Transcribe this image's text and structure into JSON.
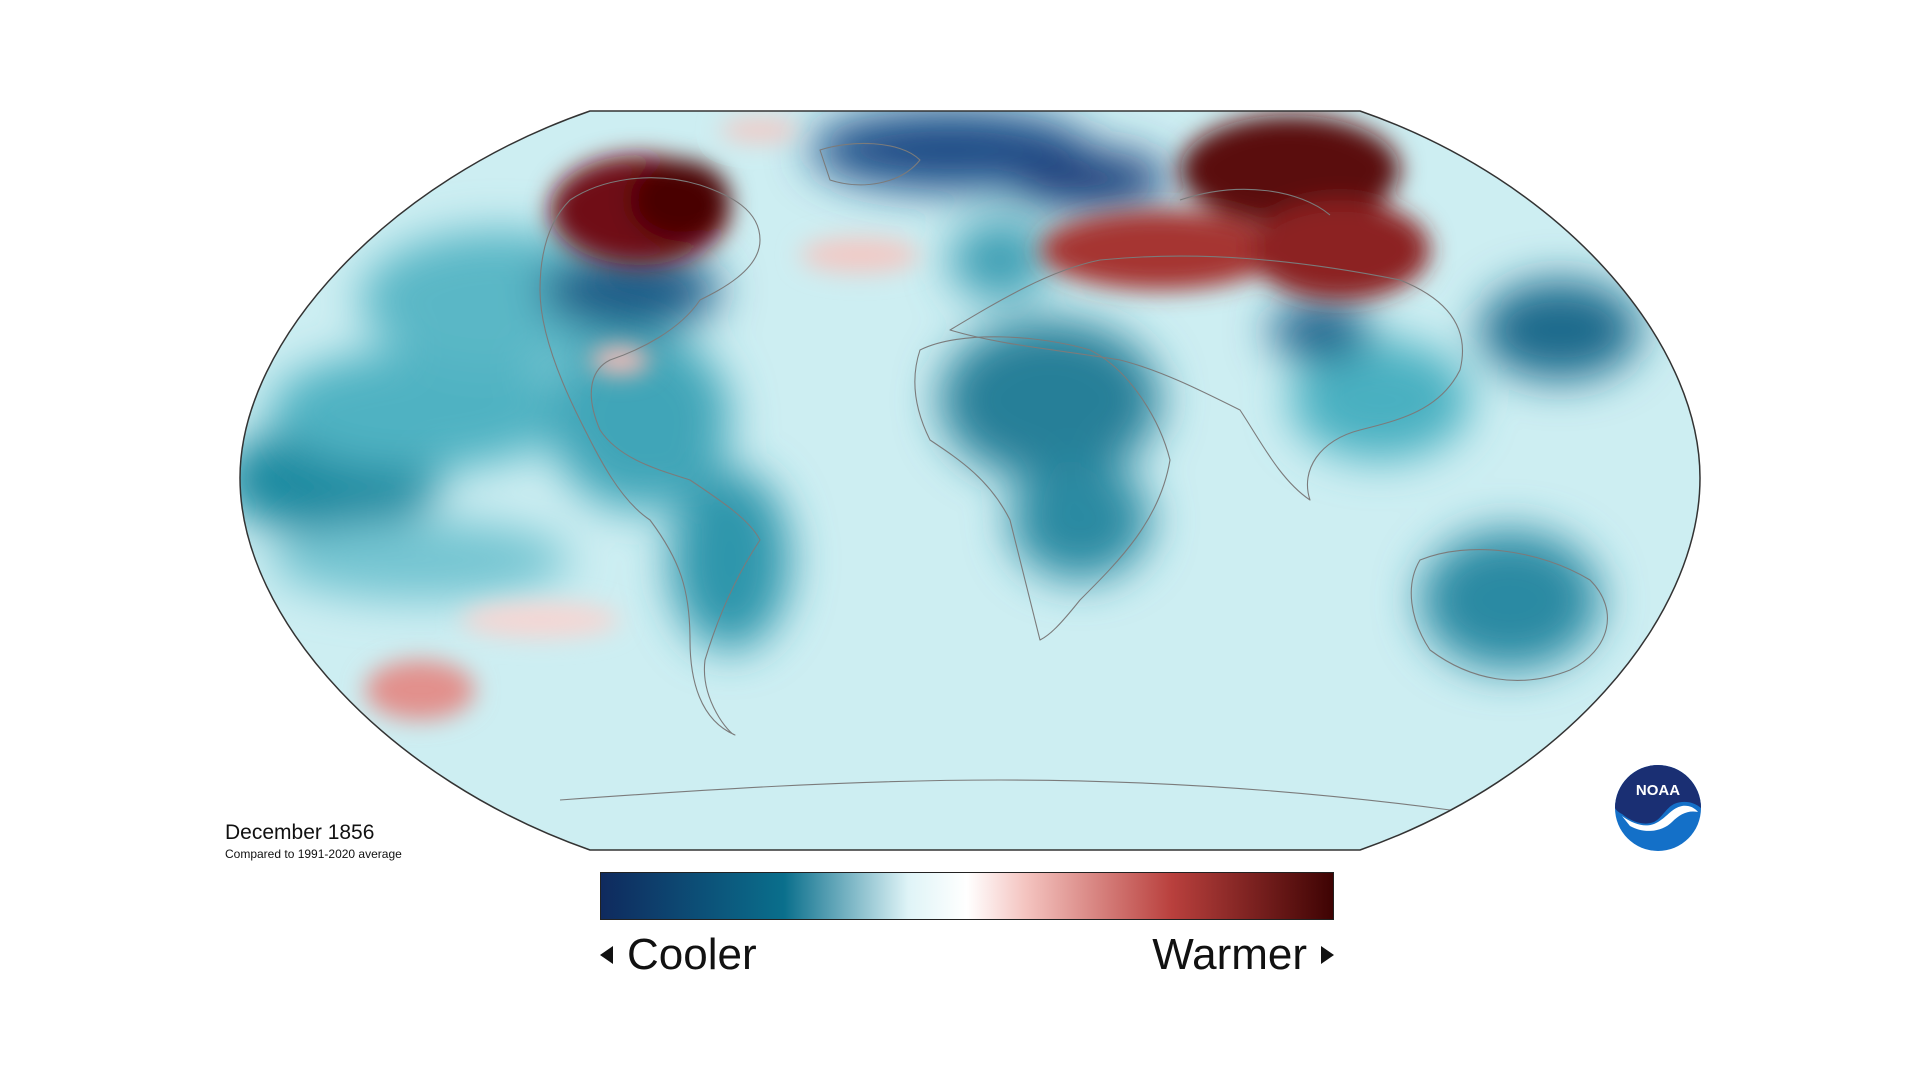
{
  "map": {
    "projection": "Robinson",
    "caption": {
      "title": "December 1856",
      "subtitle": "Compared to 1991-2020 average"
    }
  },
  "legend": {
    "left_label": "Cooler",
    "right_label": "Warmer",
    "colors": [
      "#0f2a5e",
      "#0a6f8c",
      "#dff4f7",
      "#ffffff",
      "#f4c4c0",
      "#b9403d",
      "#3e0303"
    ]
  },
  "logo": {
    "text": "NOAA",
    "colors": {
      "navy": "#1a2f73",
      "blue": "#1470c8"
    }
  }
}
